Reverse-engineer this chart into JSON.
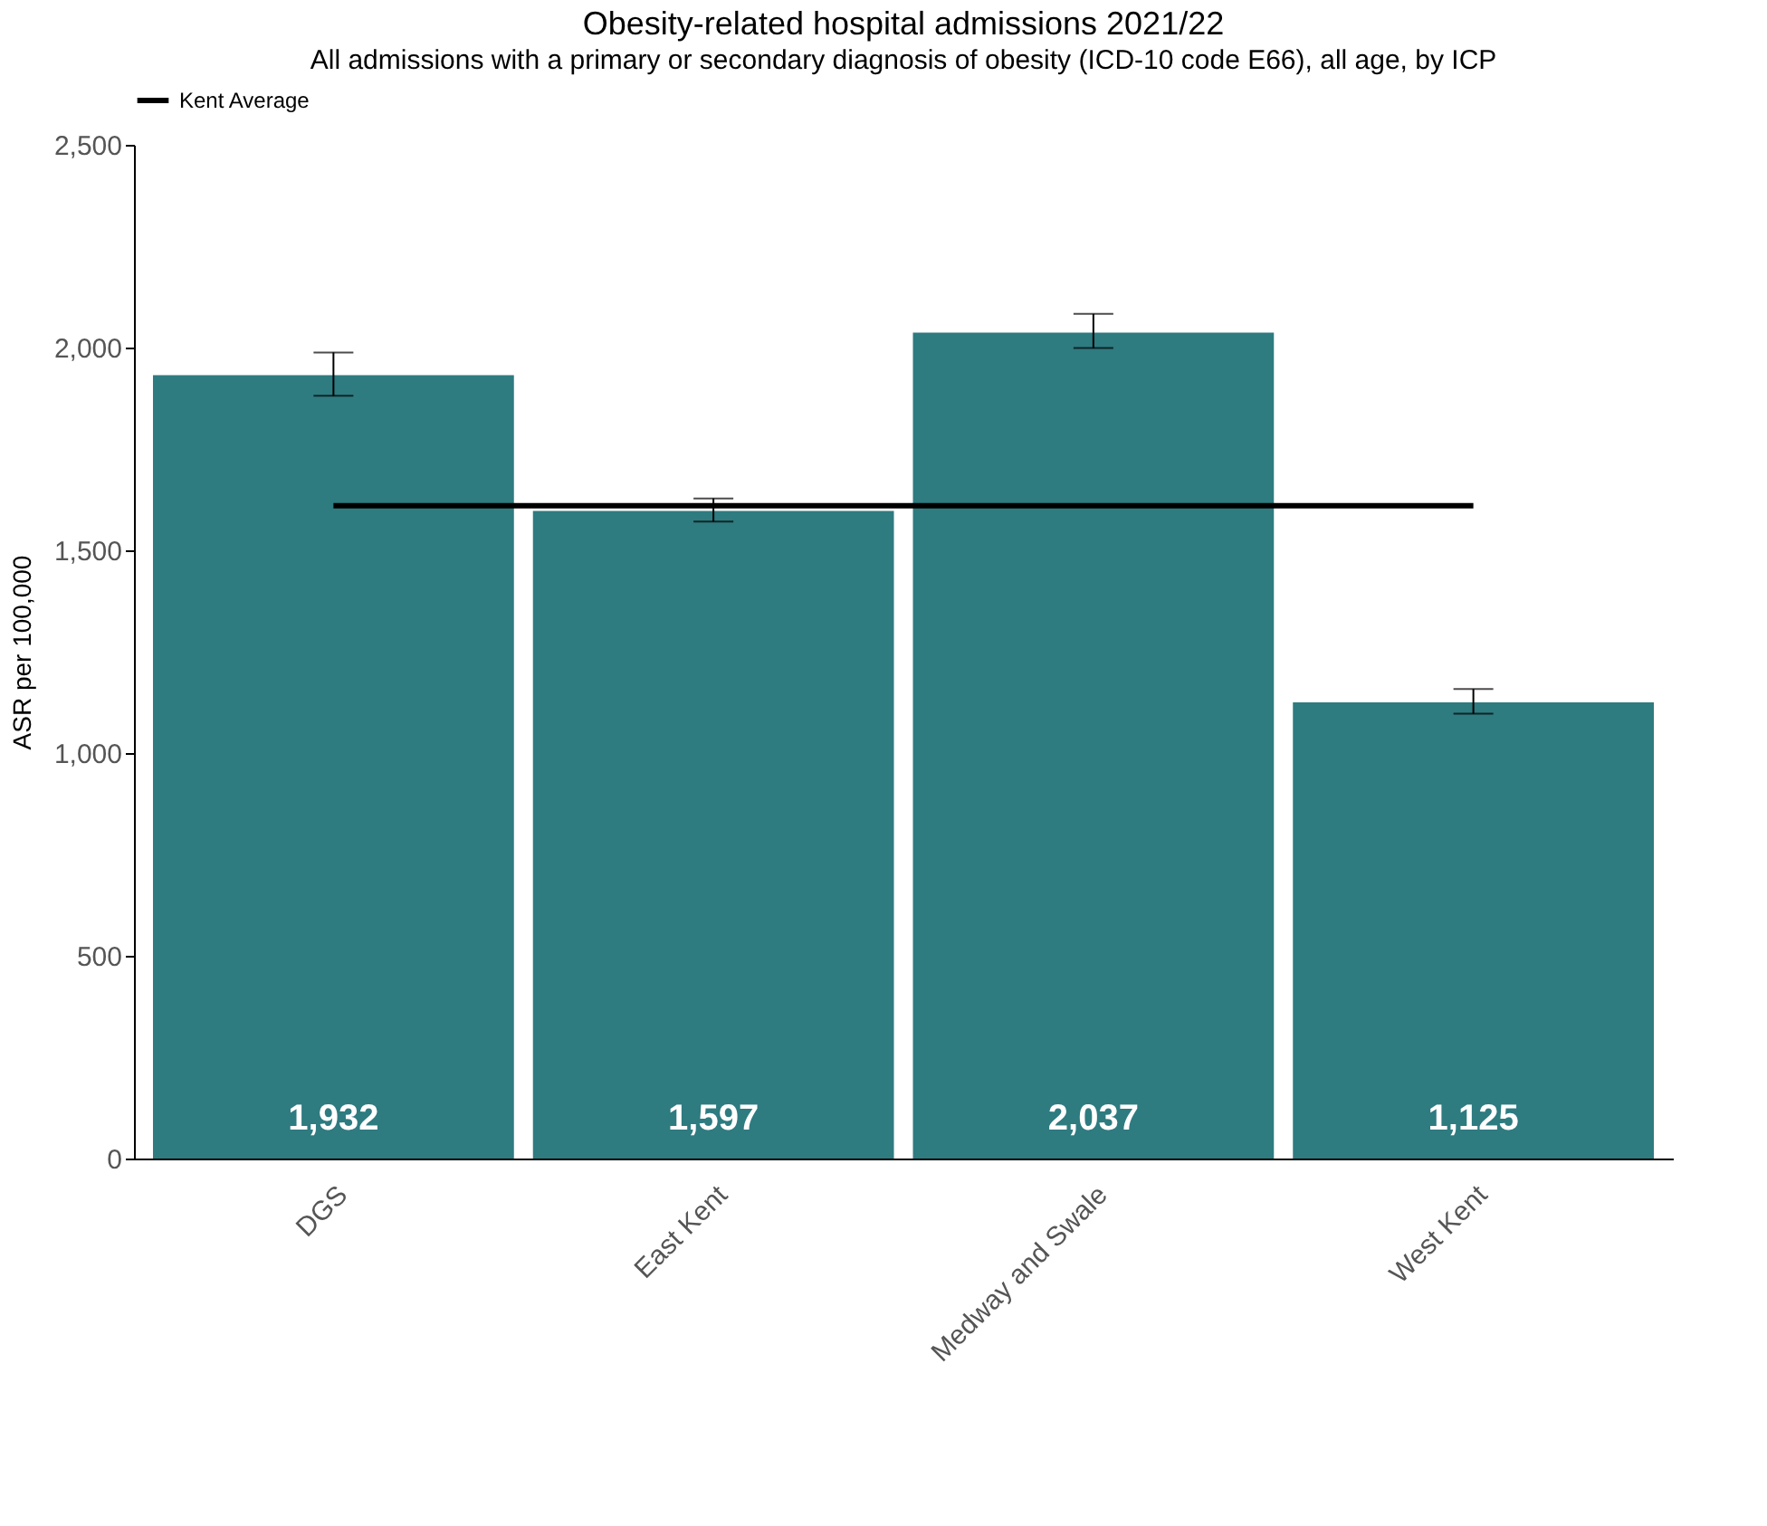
{
  "chart_data": {
    "type": "bar",
    "title": "Obesity-related hospital admissions 2021/22",
    "subtitle": "All admissions with a primary or secondary diagnosis of obesity (ICD-10 code E66), all age, by ICP",
    "ylabel": "ASR per 100,000",
    "categories": [
      "DGS",
      "East Kent",
      "Medway and Swale",
      "West Kent"
    ],
    "values": [
      1932,
      1597,
      2037,
      1125
    ],
    "value_labels": [
      "1,932",
      "1,597",
      "2,037",
      "1,125"
    ],
    "errors": [
      [
        1881,
        1988
      ],
      [
        1571,
        1628
      ],
      [
        1999,
        2083
      ],
      [
        1097,
        1158
      ]
    ],
    "color": "#2e7b80",
    "ylim": [
      0,
      2500
    ],
    "yticks": [
      {
        "value": 0,
        "label": "0"
      },
      {
        "value": 500,
        "label": "500"
      },
      {
        "value": 1000,
        "label": "1,000"
      },
      {
        "value": 1500,
        "label": "1,500"
      },
      {
        "value": 2000,
        "label": "2,000"
      },
      {
        "value": 2500,
        "label": "2,500"
      }
    ],
    "ref_lines": [
      {
        "axis": "y",
        "value": 1610,
        "label": "Kent Average",
        "color": "#000000",
        "line_style": "solid"
      }
    ],
    "legend": "top",
    "grid": false
  }
}
